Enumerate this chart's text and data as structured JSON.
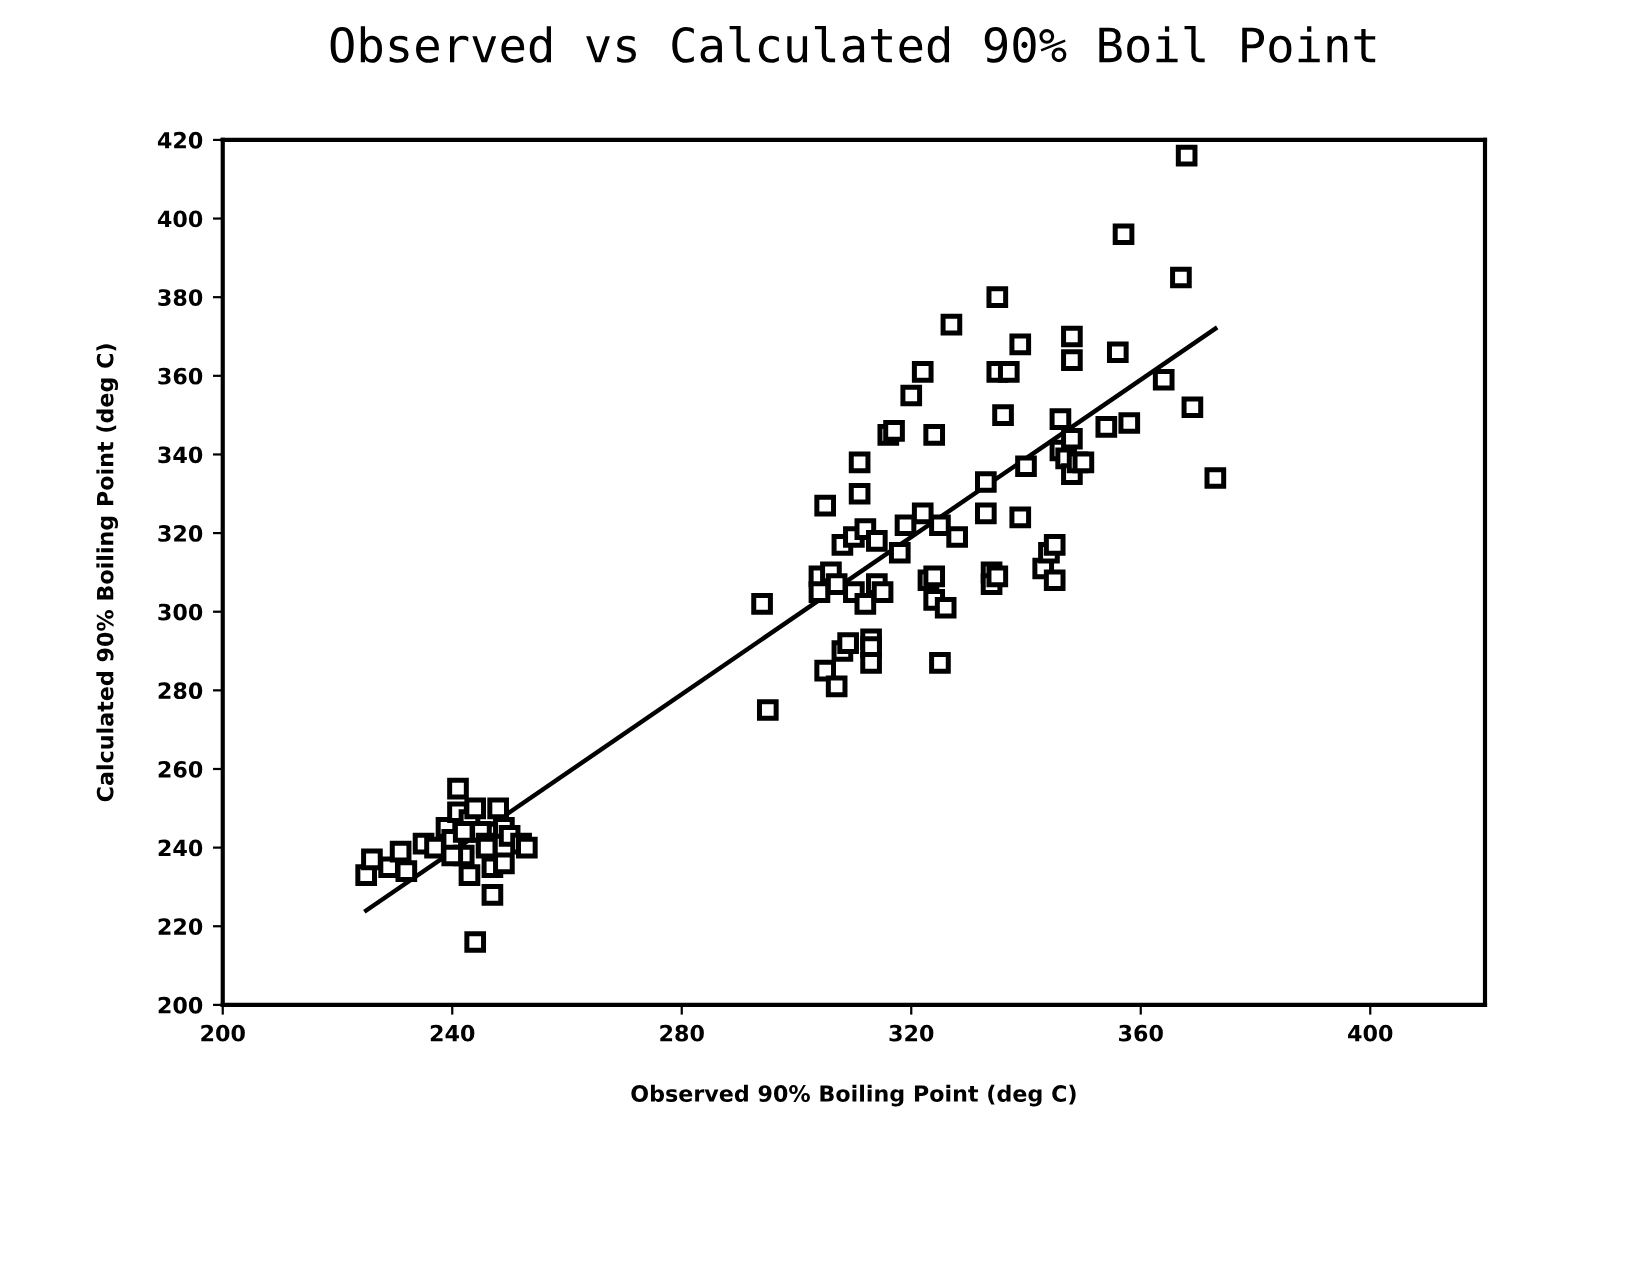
{
  "chart_data": {
    "type": "scatter",
    "title": "Observed vs Calculated 90% Boil Point",
    "xlabel": "Observed 90% Boiling Point (deg C)",
    "ylabel": "Calculated 90% Boiling Point (deg C)",
    "xlim": [
      200,
      420
    ],
    "xticks": [
      200,
      240,
      280,
      320,
      360,
      400
    ],
    "ylim": [
      200,
      420
    ],
    "yticks": [
      200,
      220,
      240,
      260,
      280,
      300,
      320,
      340,
      360,
      380,
      400,
      420
    ],
    "grid": false,
    "legend": false,
    "marker": "square",
    "series": [
      {
        "color": "#000000",
        "x": [
          225,
          226,
          229,
          231,
          232,
          235,
          237,
          239,
          240,
          241,
          241,
          243,
          242,
          243,
          244,
          244,
          245,
          246,
          247,
          247,
          248,
          249,
          250,
          249,
          252,
          253,
          246,
          240,
          242,
          294,
          295,
          304,
          304,
          305,
          305,
          306,
          307,
          307,
          308,
          308,
          309,
          310,
          310,
          311,
          311,
          312,
          312,
          313,
          313,
          313,
          314,
          314,
          315,
          316,
          317,
          318,
          319,
          320,
          322,
          322,
          323,
          324,
          324,
          324,
          325,
          325,
          326,
          327,
          328,
          333,
          333,
          334,
          334,
          335,
          335,
          335,
          336,
          337,
          339,
          339,
          340,
          343,
          344,
          345,
          345,
          346,
          346,
          347,
          348,
          348,
          348,
          348,
          349,
          350,
          354,
          356,
          357,
          358,
          364,
          367,
          368,
          369,
          373
        ],
        "values": [
          233,
          237,
          235,
          239,
          234,
          241,
          240,
          245,
          242,
          255,
          249,
          247,
          238,
          233,
          216,
          250,
          244,
          241,
          228,
          235,
          250,
          245,
          243,
          236,
          241,
          240,
          240,
          238,
          244,
          302,
          275,
          309,
          305,
          327,
          285,
          310,
          307,
          281,
          290,
          317,
          292,
          305,
          319,
          338,
          330,
          321,
          302,
          293,
          291,
          287,
          318,
          307,
          305,
          345,
          346,
          315,
          322,
          355,
          361,
          325,
          308,
          345,
          309,
          303,
          287,
          322,
          301,
          373,
          319,
          325,
          333,
          310,
          307,
          380,
          361,
          309,
          350,
          361,
          368,
          324,
          337,
          311,
          315,
          317,
          308,
          349,
          341,
          339,
          370,
          364,
          344,
          335,
          338,
          338,
          347,
          366,
          396,
          348,
          359,
          385,
          416,
          352,
          334
        ]
      },
      {
        "type": "line",
        "color": "#000000",
        "marker": "none",
        "line_style": "solid",
        "x": [
          225,
          373
        ],
        "values": [
          224,
          372
        ]
      }
    ]
  }
}
